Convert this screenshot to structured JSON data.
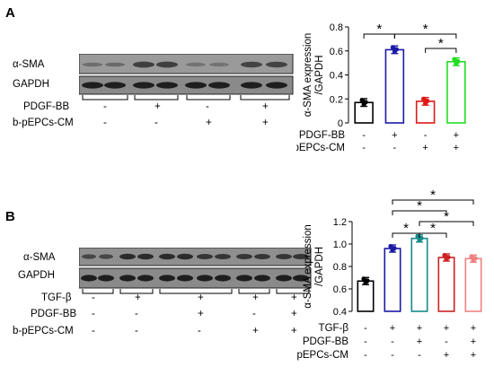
{
  "panelA": {
    "letter": "A",
    "blot_labels": {
      "asma": "α-SMA",
      "gapdh": "GAPDH"
    },
    "conditions": [
      {
        "name": "PDGF-BB",
        "signs": [
          "-",
          "+",
          "-",
          "+"
        ]
      },
      {
        "name": "b-pEPCs-CM",
        "signs": [
          "-",
          "-",
          "+",
          "+"
        ]
      }
    ],
    "chart_data": {
      "type": "bar",
      "ylabel": "α-SMA expression /GAPDH",
      "ylim": [
        0,
        0.8
      ],
      "yticks": [
        "0",
        "0.2",
        "0.4",
        "0.6",
        "0.8"
      ],
      "categories": [
        "control",
        "PDGF-BB",
        "b-pEPCs-CM",
        "PDGF-BB + b-pEPCs-CM"
      ],
      "values": [
        0.17,
        0.61,
        0.18,
        0.51
      ],
      "bar_colors": [
        "#000000",
        "#1a1aa6",
        "#e01818",
        "#22dd22"
      ],
      "x_rows": [
        {
          "label": "PDGF-BB",
          "signs": [
            "-",
            "+",
            "-",
            "+"
          ]
        },
        {
          "label": "b-pEPCs-CM",
          "signs": [
            "-",
            "-",
            "+",
            "+"
          ]
        }
      ],
      "significance": [
        {
          "from": 0,
          "to": 1,
          "label": "*"
        },
        {
          "from": 1,
          "to": 3,
          "label": "*"
        },
        {
          "from": 2,
          "to": 3,
          "label": "*"
        }
      ]
    }
  },
  "panelB": {
    "letter": "B",
    "blot_labels": {
      "asma": "α-SMA",
      "gapdh": "GAPDH"
    },
    "conditions": [
      {
        "name": "TGF-β",
        "signs": [
          "-",
          "+",
          "+",
          "+",
          "+"
        ]
      },
      {
        "name": "PDGF-BB",
        "signs": [
          "-",
          "-",
          "+",
          "-",
          "+"
        ]
      },
      {
        "name": "b-pEPCs-CM",
        "signs": [
          "-",
          "-",
          "-",
          "+",
          "+"
        ]
      }
    ],
    "chart_data": {
      "type": "bar",
      "ylabel": "α-SMA expression /GAPDH",
      "ylim": [
        0.4,
        1.2
      ],
      "yticks": [
        "0.4",
        "0.6",
        "0.8",
        "1.0",
        "1.2"
      ],
      "categories": [
        "control",
        "TGF-β",
        "TGF-β + PDGF-BB",
        "TGF-β + b-pEPCs-CM",
        "TGF-β + PDGF-BB + b-pEPCs-CM"
      ],
      "values": [
        0.67,
        0.96,
        1.05,
        0.88,
        0.87
      ],
      "bar_colors": [
        "#000000",
        "#1a1aa6",
        "#178a8a",
        "#cc2222",
        "#f08080"
      ],
      "x_rows": [
        {
          "label": "TGF-β",
          "signs": [
            "-",
            "+",
            "+",
            "+",
            "+"
          ]
        },
        {
          "label": "PDGF-BB",
          "signs": [
            "-",
            "-",
            "+",
            "-",
            "+"
          ]
        },
        {
          "label": "b-pEPCs-CM",
          "signs": [
            "-",
            "-",
            "-",
            "+",
            "+"
          ]
        }
      ],
      "significance": [
        {
          "from": 1,
          "to": 4,
          "label": "*"
        },
        {
          "from": 1,
          "to": 3,
          "label": "*"
        },
        {
          "from": 2,
          "to": 4,
          "label": "*"
        },
        {
          "from": 1,
          "to": 2,
          "label": "*"
        },
        {
          "from": 2,
          "to": 3,
          "label": "*"
        }
      ]
    }
  }
}
